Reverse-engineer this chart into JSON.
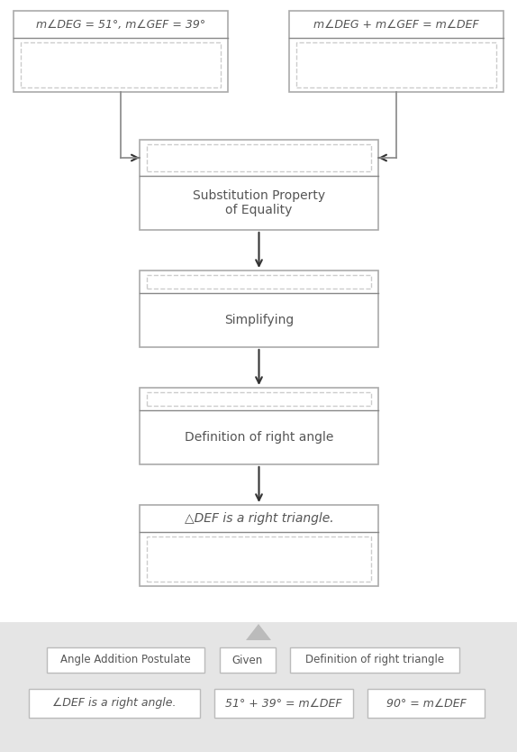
{
  "main_bg": "#ffffff",
  "box_edge": "#aaaaaa",
  "divider_color": "#888888",
  "dashed_color": "#cccccc",
  "arrow_color": "#333333",
  "line_color": "#888888",
  "text_color": "#555555",
  "bottom_bg": "#e5e5e5",
  "tri_color": "#bbbbbb",
  "top_left_title": "m∠DEG = 51°, m∠GEF = 39°",
  "top_right_title": "m∠DEG + m∠GEF = m∠DEF",
  "box2_label": "Substitution Property\nof Equality",
  "box3_label": "Simplifying",
  "box4_label": "Definition of right angle",
  "box5_title": "△DEF is a right triangle.",
  "drag_labels_row1": [
    "Angle Addition Postulate",
    "Given",
    "Definition of right triangle"
  ],
  "drag_labels_row2": [
    "∠DEF is a right angle.",
    "51° + 39° = m∠DEF",
    "90° = m∠DEF"
  ]
}
